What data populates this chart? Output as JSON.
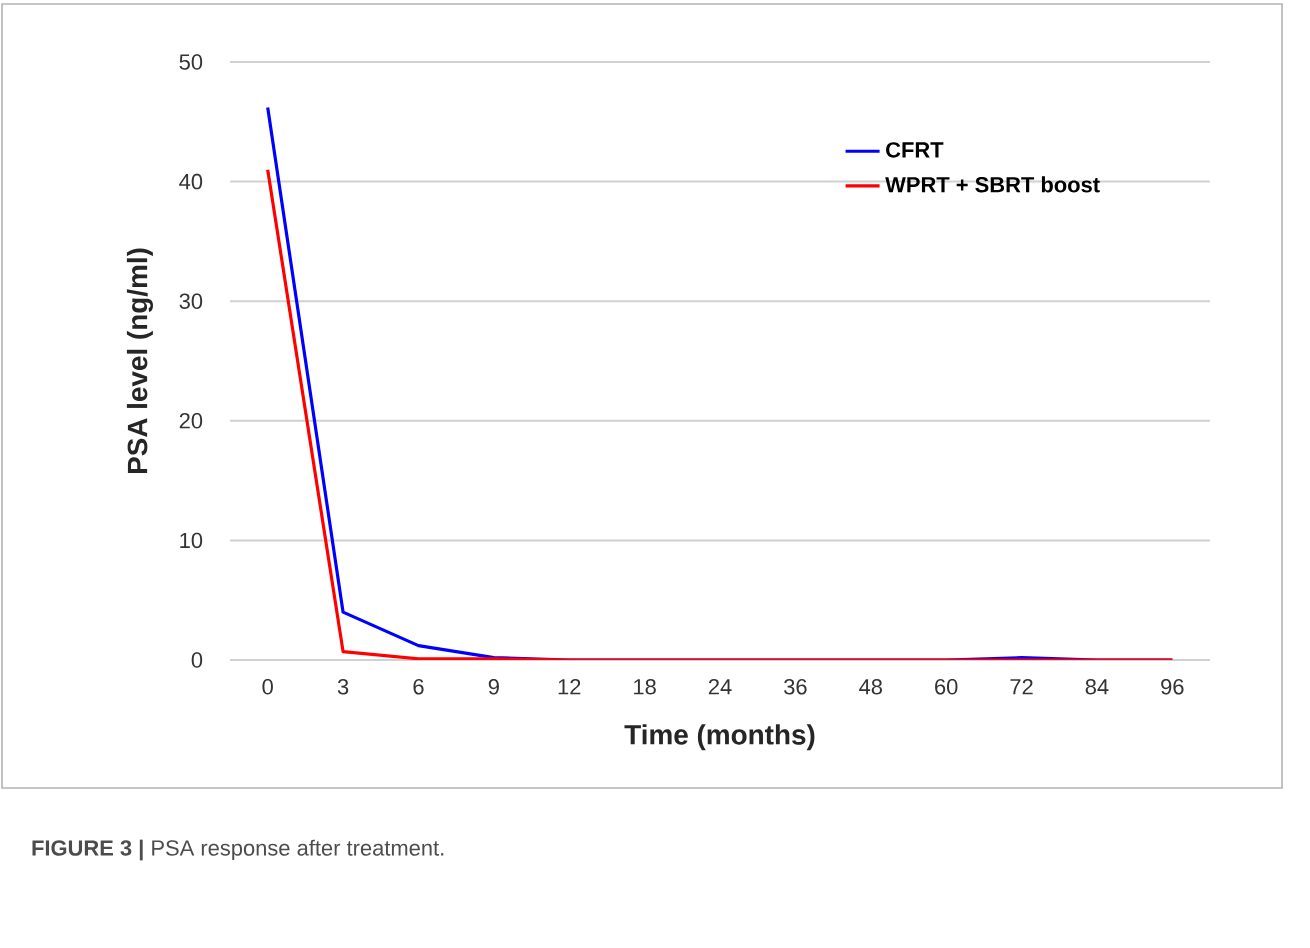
{
  "chart_data": {
    "type": "line",
    "xlabel": "Time (months)",
    "ylabel": "PSA level (ng/ml)",
    "categories": [
      "0",
      "3",
      "6",
      "9",
      "12",
      "18",
      "24",
      "36",
      "48",
      "60",
      "72",
      "84",
      "96"
    ],
    "series": [
      {
        "name": "CFRT",
        "color": "#0000ff",
        "values": [
          46.2,
          4.0,
          1.2,
          0.2,
          0,
          0,
          0,
          0,
          0,
          0,
          0.2,
          0,
          0
        ]
      },
      {
        "name": "WPRT + SBRT boost",
        "color": "#ff0000",
        "values": [
          41,
          0.7,
          0.1,
          0.1,
          0,
          0,
          0,
          0,
          0,
          0,
          0,
          0,
          0
        ]
      }
    ],
    "ylim": [
      0,
      50
    ],
    "yticks": [
      0,
      10,
      20,
      30,
      40,
      50
    ],
    "grid": "y",
    "legend": "top right",
    "marker": "none",
    "line_style": "solid",
    "annotations": [
      "**FIGURE 3 |** PSA response after treatment."
    ]
  }
}
